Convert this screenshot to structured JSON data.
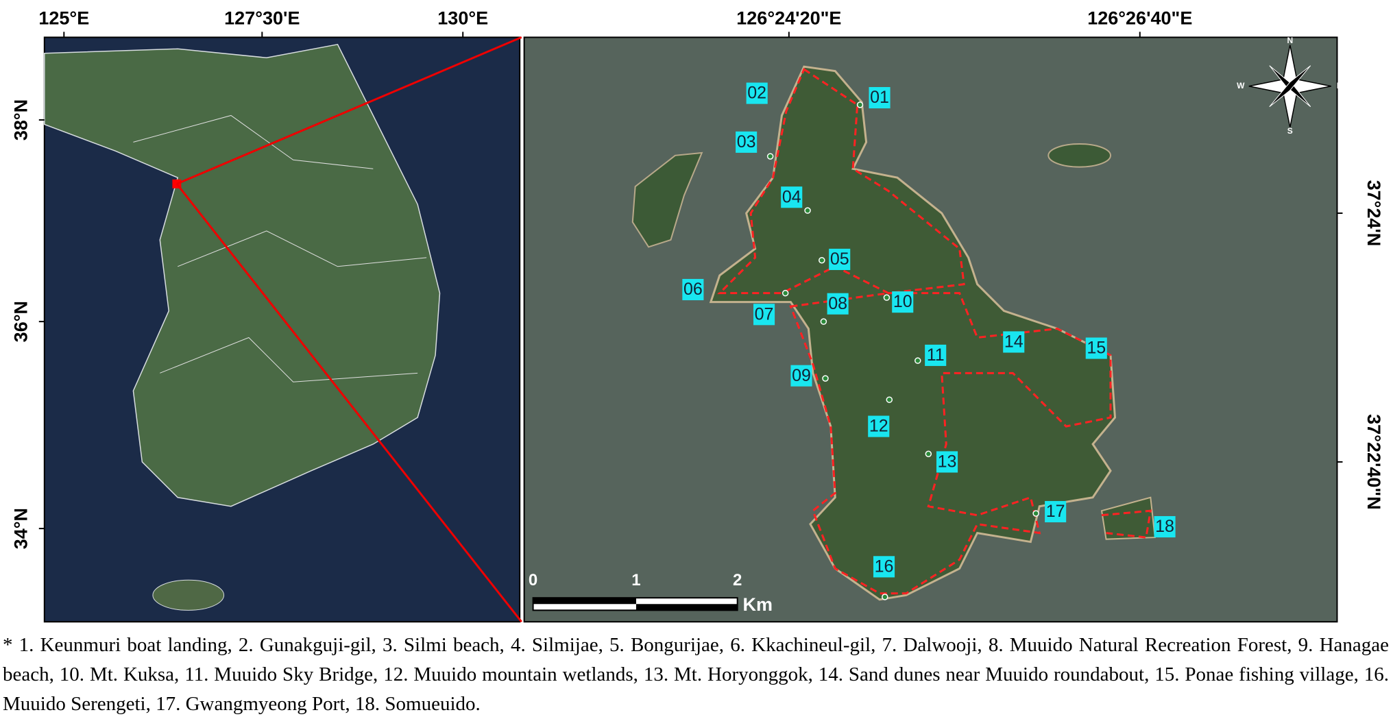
{
  "left_map": {
    "lon_ticks": [
      "125°E",
      "127°30'E",
      "130°E"
    ],
    "lat_ticks": [
      "38°N",
      "36°N",
      "34°N"
    ]
  },
  "right_map": {
    "lon_ticks": [
      "126°24'20\"E",
      "126°26'40\"E"
    ],
    "lat_ticks": [
      "37°24'N",
      "37°22'40\"N"
    ],
    "sites": [
      "01",
      "02",
      "03",
      "04",
      "05",
      "06",
      "07",
      "08",
      "09",
      "10",
      "11",
      "12",
      "13",
      "14",
      "15",
      "16",
      "17",
      "18"
    ],
    "scale_bar": {
      "ticks": [
        0,
        1,
        2
      ],
      "unit": "Km"
    },
    "compass": [
      "N",
      "E",
      "S",
      "W"
    ]
  },
  "caption": "* 1. Keunmuri boat landing, 2. Gunakguji-gil, 3. Silmi beach, 4. Silmijae, 5. Bongurijae, 6. Kkachineul-gil, 7. Dalwooji, 8. Muuido Natural Recreation Forest, 9. Hanagae beach, 10. Mt. Kuksa, 11. Muuido Sky Bridge, 12. Muuido mountain wetlands, 13. Mt. Horyonggok, 14. Sand dunes near Muuido roundabout, 15. Ponae fishing village, 16. Muuido Serengeti, 17. Gwangmyeong Port, 18. Somueuido."
}
